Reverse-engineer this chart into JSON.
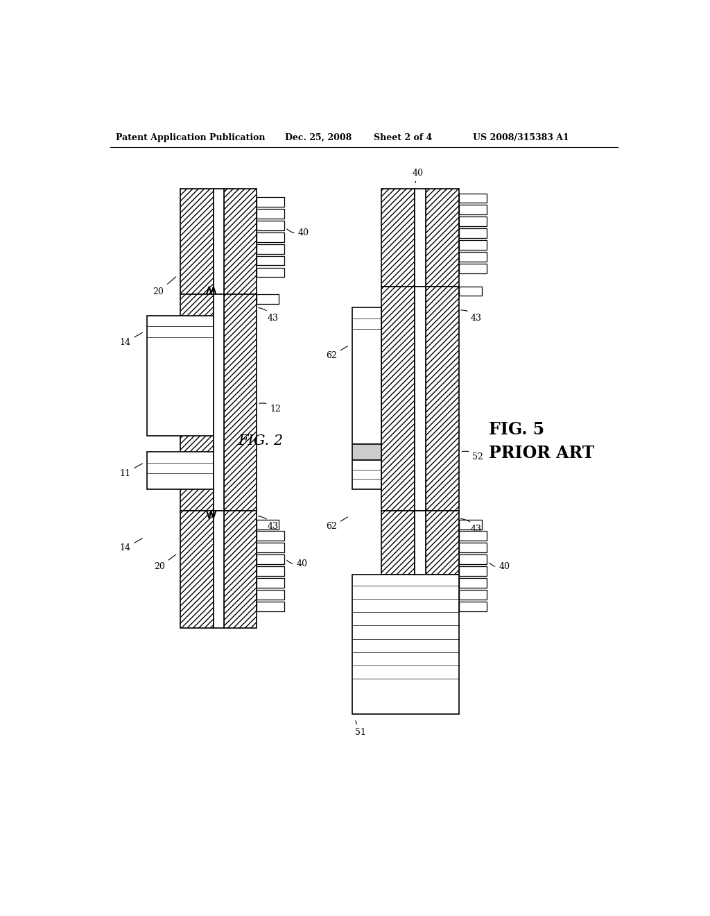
{
  "bg_color": "#ffffff",
  "header_text": "Patent Application Publication",
  "header_date": "Dec. 25, 2008",
  "header_sheet": "Sheet 2 of 4",
  "header_patent": "US 2008/315383 A1",
  "fig2_label": "FIG. 2",
  "fig5_label": "FIG. 5\nPRIOR ART",
  "hatch_pattern": "////",
  "linewidth": 1.2
}
